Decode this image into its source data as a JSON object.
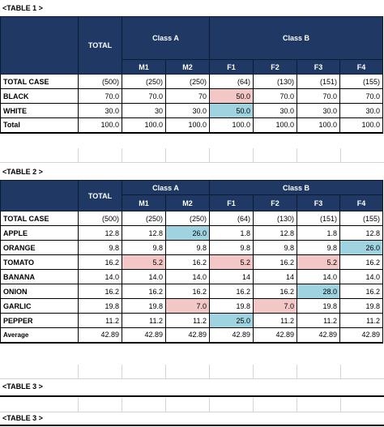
{
  "table1": {
    "caption": "<TABLE 1 >",
    "total_label": "TOTAL",
    "groups": [
      "Class A",
      "Class B"
    ],
    "cols": [
      "M1",
      "M2",
      "F1",
      "F2",
      "F3",
      "F4"
    ],
    "rows": [
      {
        "label": "TOTAL CASE",
        "total": "(500)",
        "values": [
          "(250)",
          "(250)",
          "(64)",
          "(130)",
          "(151)",
          "(155)"
        ]
      },
      {
        "label": "BLACK",
        "total": "70.0",
        "values": [
          "70.0",
          "70",
          "50.0",
          "70.0",
          "70.0",
          "70.0"
        ]
      },
      {
        "label": "WHITE",
        "total": "30.0",
        "values": [
          "30",
          "30.0",
          "50.0",
          "30.0",
          "30.0",
          "30.0"
        ]
      },
      {
        "label": "Total",
        "total": "100.0",
        "values": [
          "100.0",
          "100.0",
          "100.0",
          "100.0",
          "100.0",
          "100.0"
        ]
      }
    ]
  },
  "table2": {
    "caption": "<TABLE 2 >",
    "total_label": "TOTAL",
    "groups": [
      "Class A",
      "Class B"
    ],
    "cols": [
      "M1",
      "M2",
      "F1",
      "F2",
      "F3",
      "F4"
    ],
    "rows": [
      {
        "label": "TOTAL CASE",
        "total": "(500)",
        "values": [
          "(250)",
          "(250)",
          "(64)",
          "(130)",
          "(151)",
          "(155)"
        ]
      },
      {
        "label": "APPLE",
        "total": "12.8",
        "values": [
          "12.8",
          "26.0",
          "1.8",
          "12.8",
          "1.8",
          "12.8"
        ]
      },
      {
        "label": "ORANGE",
        "total": "9.8",
        "values": [
          "9.8",
          "9.8",
          "9.8",
          "9.8",
          "9.8",
          "26.0"
        ]
      },
      {
        "label": "TOMATO",
        "total": "16.2",
        "values": [
          "5.2",
          "16.2",
          "5.2",
          "16.2",
          "5.2",
          "16.2"
        ]
      },
      {
        "label": "BANANA",
        "total": "14.0",
        "values": [
          "14.0",
          "14.0",
          "14",
          "14",
          "14.0",
          "14.0"
        ]
      },
      {
        "label": "ONION",
        "total": "16.2",
        "values": [
          "16.2",
          "16.2",
          "16.2",
          "16.2",
          "28.0",
          "16.2"
        ]
      },
      {
        "label": "GARLIC",
        "total": "19.8",
        "values": [
          "19.8",
          "7.0",
          "19.8",
          "7.0",
          "19.8",
          "19.8"
        ]
      },
      {
        "label": "PEPPER",
        "total": "11.2",
        "values": [
          "11.2",
          "11.2",
          "25.0",
          "11.2",
          "11.2",
          "11.2"
        ]
      },
      {
        "label": "Average",
        "total": "42.89",
        "values": [
          "42.89",
          "42.89",
          "42.89",
          "42.89",
          "42.89",
          "42.89"
        ]
      }
    ]
  },
  "table3_caption": "<TABLE 3 >",
  "table3b_caption": "<TABLE 3 >",
  "highlight_colors": {
    "pink": "#f4c7c7",
    "blue": "#9fd3e0",
    "header": "#1f3864"
  }
}
